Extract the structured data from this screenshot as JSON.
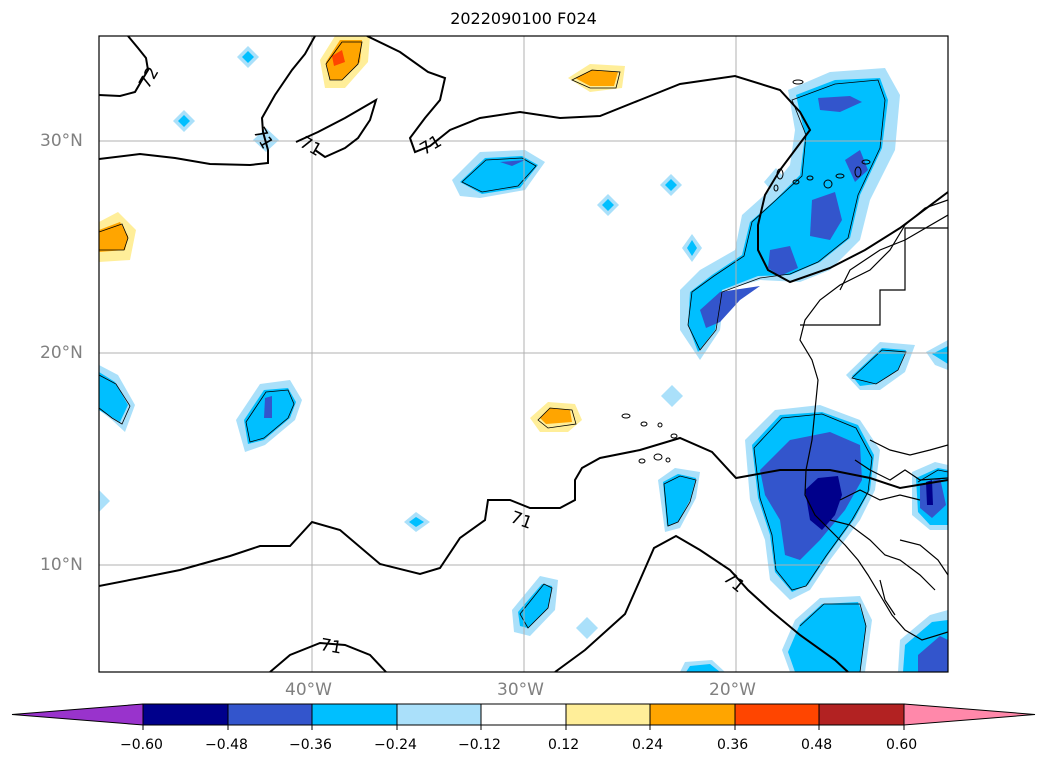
{
  "title": "2022090100 F024",
  "map": {
    "lat_labels": [
      "30°N",
      "20°N",
      "10°N"
    ],
    "lon_labels": [
      "40°W",
      "30°W",
      "20°W"
    ],
    "contour_labels": [
      "72",
      "71",
      "71",
      "71",
      "71",
      "71",
      "71"
    ]
  },
  "colorbar": {
    "ticks": [
      "−0.60",
      "−0.48",
      "−0.36",
      "−0.24",
      "−0.12",
      "0.12",
      "0.24",
      "0.36",
      "0.48",
      "0.60"
    ],
    "colors": {
      "under": "#9933cc",
      "bins": [
        "#00008b",
        "#3355cc",
        "#00bfff",
        "#aae0fa",
        "#ffffff",
        "#ffee99",
        "#ffa500",
        "#ff4500",
        "#b22222"
      ],
      "over": "#ff88aa"
    }
  }
}
